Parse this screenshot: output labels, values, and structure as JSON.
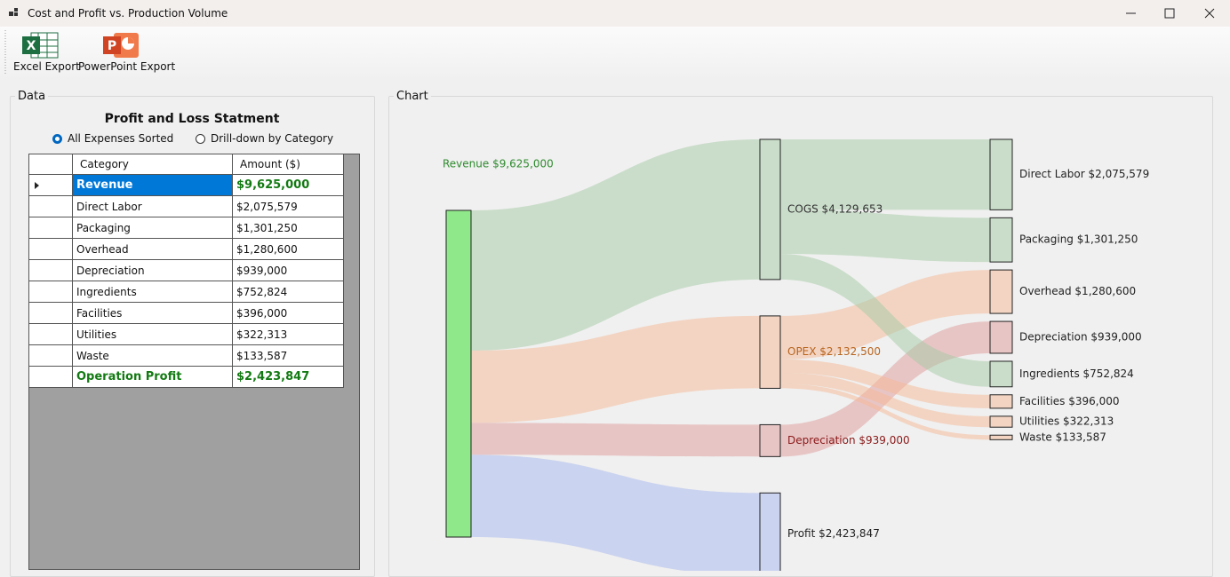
{
  "window": {
    "title": "Cost and Profit vs. Production Volume"
  },
  "toolbar": {
    "buttons": [
      "Excel Export",
      "PowerPoint Export"
    ]
  },
  "data_panel": {
    "group_label": "Data",
    "title": "Profit and Loss Statment",
    "options": [
      "All Expenses Sorted",
      "Drill-down by Category"
    ],
    "selected_option": 0,
    "table": {
      "header": [
        "Category",
        "Amount ($)"
      ],
      "rows": [
        [
          "Revenue",
          "$9,625,000"
        ],
        [
          "Direct Labor",
          "$2,075,579"
        ],
        [
          "Packaging",
          "$1,301,250"
        ],
        [
          "Overhead",
          "$1,280,600"
        ],
        [
          "Depreciation",
          "$939,000"
        ],
        [
          "Ingredients",
          "$752,824"
        ],
        [
          "Facilities",
          "$396,000"
        ],
        [
          "Utilities",
          "$322,313"
        ],
        [
          "Waste",
          "$133,587"
        ],
        [
          "Operation Profit",
          "$2,423,847"
        ]
      ],
      "selected_row": 0,
      "emphasized_rows": [
        0,
        9
      ]
    }
  },
  "chart_panel": {
    "group_label": "Chart"
  },
  "chart_data": {
    "type": "sankey",
    "nodes": [
      {
        "label": "Revenue $9,625,000",
        "value": 9625000,
        "color": "#8fe88a",
        "label_color": "#2e8b2e"
      },
      {
        "label": "COGS $4,129,653",
        "value": 4129653,
        "from": 0,
        "color": "#a3c9a3",
        "label_color": "#333333"
      },
      {
        "label": "OPEX $2,132,500",
        "value": 2132500,
        "from": 0,
        "color": "#f5b894",
        "label_color": "#b8651f"
      },
      {
        "label": "Depreciation $939,000",
        "value": 939000,
        "from": 0,
        "color": "#e09a9a",
        "label_color": "#8b1a1a"
      },
      {
        "label": "Profit $2,423,847",
        "value": 2423847,
        "from": 0,
        "color": "#a3b5ee",
        "label_color": "#222222"
      },
      {
        "label": "Direct Labor $2,075,579",
        "value": 2075579,
        "from": 1,
        "color": "#a3c9a3",
        "label_color": "#222222"
      },
      {
        "label": "Packaging $1,301,250",
        "value": 1301250,
        "from": 1,
        "color": "#a3c9a3",
        "label_color": "#222222"
      },
      {
        "label": "Overhead $1,280,600",
        "value": 1280600,
        "from": 2,
        "color": "#f5b894",
        "label_color": "#222222"
      },
      {
        "label": "Depreciation $939,000",
        "value": 939000,
        "from": 3,
        "color": "#e09a9a",
        "label_color": "#222222"
      },
      {
        "label": "Ingredients $752,824",
        "value": 752824,
        "from": 1,
        "color": "#a3c9a3",
        "label_color": "#222222"
      },
      {
        "label": "Facilities $396,000",
        "value": 396000,
        "from": 2,
        "color": "#f5b894",
        "label_color": "#222222"
      },
      {
        "label": "Utilities $322,313",
        "value": 322313,
        "from": 2,
        "color": "#f5b894",
        "label_color": "#222222"
      },
      {
        "label": "Waste $133,587",
        "value": 133587,
        "from": 2,
        "color": "#f5b894",
        "label_color": "#222222"
      }
    ]
  }
}
